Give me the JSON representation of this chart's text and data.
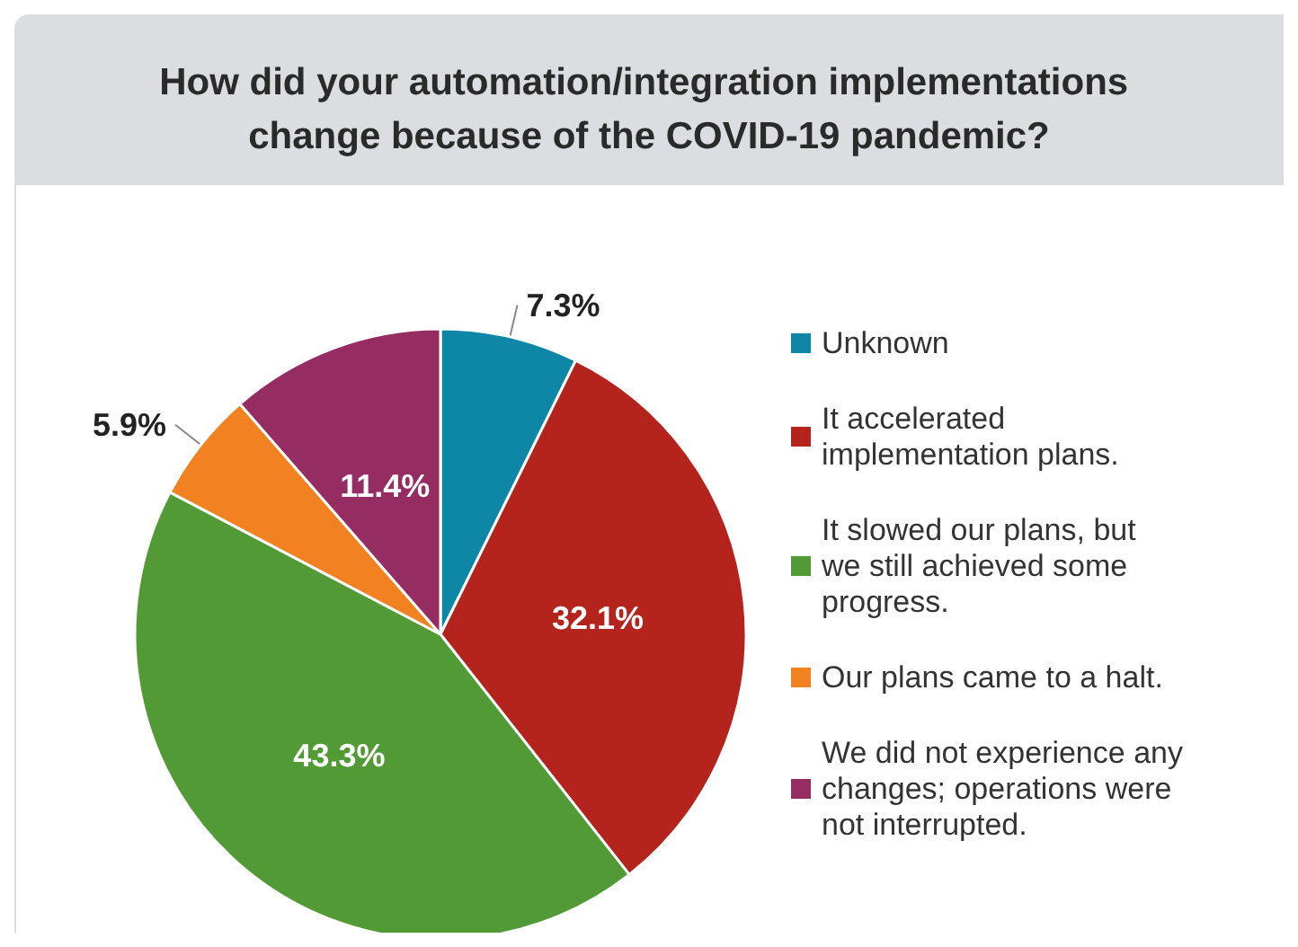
{
  "chart_data": {
    "type": "pie",
    "title": "How did your automation/integration implementations change because of the COVID-19 pandemic?",
    "categories": [
      "Unknown",
      "It accelerated implementation plans.",
      "It slowed our plans, but we still achieved some progress.",
      "Our plans came to a halt.",
      "We did not experience any changes; operations were not interrupted."
    ],
    "values": [
      7.3,
      32.1,
      43.3,
      5.9,
      11.4
    ],
    "colors": [
      "#0e87a6",
      "#b5231d",
      "#529a35",
      "#f28221",
      "#952d63"
    ],
    "value_labels": [
      "7.3%",
      "32.1%",
      "43.3%",
      "5.9%",
      "11.4%"
    ],
    "legend": "right"
  }
}
